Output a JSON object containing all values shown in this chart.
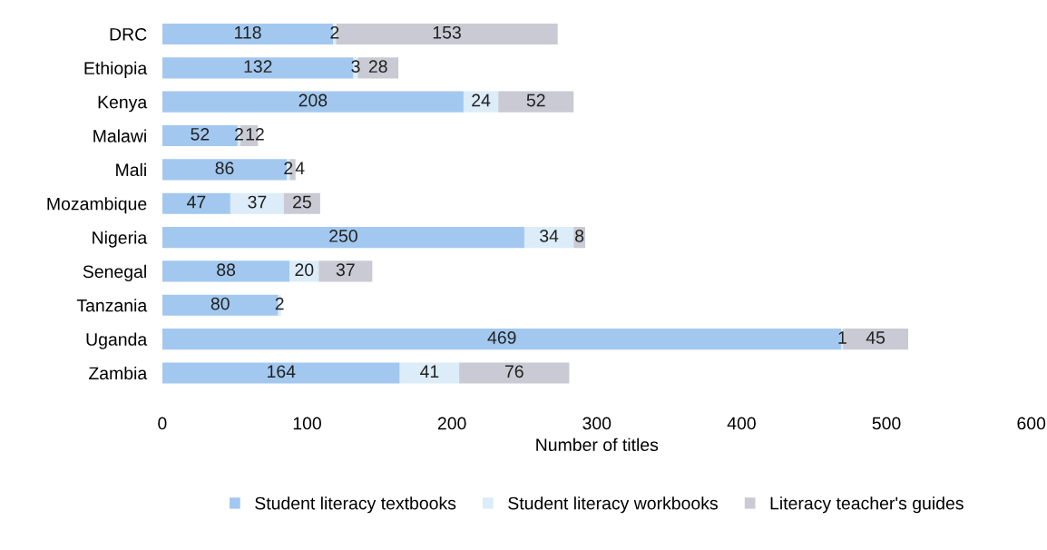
{
  "chart_data": {
    "type": "bar",
    "orientation": "horizontal",
    "stacked": true,
    "xlabel": "Number of titles",
    "categories": [
      "DRC",
      "Ethiopia",
      "Kenya",
      "Malawi",
      "Mali",
      "Mozambique",
      "Nigeria",
      "Senegal",
      "Tanzania",
      "Uganda",
      "Zambia"
    ],
    "series": [
      {
        "name": "Student literacy textbooks",
        "color": "#a3c8ef",
        "values": [
          118,
          132,
          208,
          52,
          86,
          47,
          250,
          88,
          80,
          469,
          164
        ]
      },
      {
        "name": "Student literacy workbooks",
        "color": "#dcecf8",
        "values": [
          2,
          3,
          24,
          2,
          2,
          37,
          34,
          20,
          2,
          1,
          41
        ]
      },
      {
        "name": "Literacy teacher's guides",
        "color": "#c9cad3",
        "values": [
          153,
          28,
          52,
          12,
          4,
          25,
          8,
          37,
          null,
          45,
          76
        ]
      }
    ],
    "xlim": [
      0,
      600
    ],
    "xticks": [
      0,
      100,
      200,
      300,
      400,
      500,
      600
    ],
    "data_labels": true,
    "legend": "bottom",
    "grid": false
  }
}
